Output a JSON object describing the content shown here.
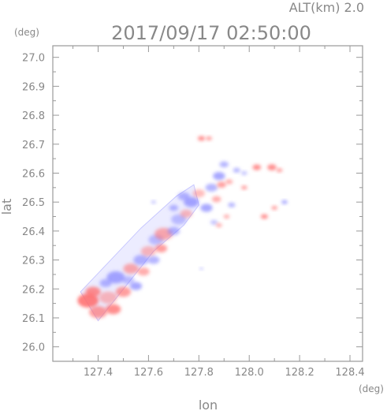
{
  "chart_data": {
    "type": "heatmap",
    "title": "2017/09/17 02:50:00",
    "annotation": "ALT(km) 2.0",
    "xlabel": "lon",
    "ylabel": "lat",
    "x_unit": "(deg)",
    "y_unit": "(deg)",
    "xlim": [
      127.22,
      128.45
    ],
    "ylim": [
      25.95,
      27.04
    ],
    "x_ticks": [
      127.4,
      127.6,
      127.8,
      128.0,
      128.2,
      128.4
    ],
    "x_tick_labels": [
      "127.4",
      "127.6",
      "127.8",
      "128.0",
      "128.2",
      "128.4"
    ],
    "y_ticks": [
      26.0,
      26.1,
      26.2,
      26.3,
      26.4,
      26.5,
      26.6,
      26.7,
      26.8,
      26.9,
      27.0
    ],
    "y_tick_labels": [
      "26.0",
      "26.1",
      "26.2",
      "26.3",
      "26.4",
      "26.5",
      "26.6",
      "26.7",
      "26.8",
      "26.9",
      "27.0"
    ],
    "grid": false,
    "colors": {
      "negative": "#7a7aff",
      "positive": "#ff6a6a",
      "axis": "#999999",
      "text": "#888888"
    },
    "swath": {
      "polygon": [
        [
          127.33,
          26.19
        ],
        [
          127.4,
          26.09
        ],
        [
          127.62,
          26.33
        ],
        [
          127.74,
          26.42
        ],
        [
          127.8,
          26.49
        ],
        [
          127.78,
          26.56
        ],
        [
          127.71,
          26.52
        ],
        [
          127.57,
          26.41
        ],
        [
          127.45,
          26.3
        ],
        [
          127.33,
          26.19
        ]
      ]
    },
    "cells": [
      {
        "x": 127.36,
        "y": 26.16,
        "r": 0.035,
        "v": 0.7
      },
      {
        "x": 127.4,
        "y": 26.12,
        "r": 0.03,
        "v": 0.5
      },
      {
        "x": 127.38,
        "y": 26.19,
        "r": 0.025,
        "v": 0.6
      },
      {
        "x": 127.44,
        "y": 26.17,
        "r": 0.03,
        "v": 0.3
      },
      {
        "x": 127.46,
        "y": 26.13,
        "r": 0.025,
        "v": 0.6
      },
      {
        "x": 127.43,
        "y": 26.22,
        "r": 0.02,
        "v": -0.4
      },
      {
        "x": 127.47,
        "y": 26.24,
        "r": 0.03,
        "v": -0.5
      },
      {
        "x": 127.5,
        "y": 26.19,
        "r": 0.025,
        "v": 0.5
      },
      {
        "x": 127.52,
        "y": 26.23,
        "r": 0.02,
        "v": -0.3
      },
      {
        "x": 127.53,
        "y": 26.27,
        "r": 0.025,
        "v": 0.4
      },
      {
        "x": 127.55,
        "y": 26.21,
        "r": 0.02,
        "v": -0.5
      },
      {
        "x": 127.57,
        "y": 26.3,
        "r": 0.025,
        "v": -0.4
      },
      {
        "x": 127.58,
        "y": 26.26,
        "r": 0.02,
        "v": 0.4
      },
      {
        "x": 127.6,
        "y": 26.33,
        "r": 0.025,
        "v": 0.3
      },
      {
        "x": 127.62,
        "y": 26.3,
        "r": 0.02,
        "v": -0.4
      },
      {
        "x": 127.63,
        "y": 26.37,
        "r": 0.025,
        "v": -0.3
      },
      {
        "x": 127.65,
        "y": 26.34,
        "r": 0.02,
        "v": 0.5
      },
      {
        "x": 127.66,
        "y": 26.39,
        "r": 0.03,
        "v": 0.4
      },
      {
        "x": 127.7,
        "y": 26.4,
        "r": 0.02,
        "v": -0.4
      },
      {
        "x": 127.72,
        "y": 26.44,
        "r": 0.025,
        "v": -0.3
      },
      {
        "x": 127.75,
        "y": 26.46,
        "r": 0.02,
        "v": 0.3
      },
      {
        "x": 127.77,
        "y": 26.5,
        "r": 0.025,
        "v": -0.5
      },
      {
        "x": 127.74,
        "y": 26.52,
        "r": 0.02,
        "v": -0.4
      },
      {
        "x": 127.8,
        "y": 26.53,
        "r": 0.02,
        "v": 0.3
      },
      {
        "x": 127.83,
        "y": 26.48,
        "r": 0.02,
        "v": -0.5
      },
      {
        "x": 127.85,
        "y": 26.55,
        "r": 0.02,
        "v": -0.4
      },
      {
        "x": 127.87,
        "y": 26.51,
        "r": 0.015,
        "v": 0.4
      },
      {
        "x": 127.88,
        "y": 26.59,
        "r": 0.02,
        "v": -0.5
      },
      {
        "x": 127.9,
        "y": 26.63,
        "r": 0.015,
        "v": -0.4
      },
      {
        "x": 127.89,
        "y": 26.56,
        "r": 0.015,
        "v": 0.5
      },
      {
        "x": 127.92,
        "y": 26.57,
        "r": 0.012,
        "v": 0.4
      },
      {
        "x": 127.93,
        "y": 26.49,
        "r": 0.012,
        "v": -0.4
      },
      {
        "x": 127.91,
        "y": 26.45,
        "r": 0.01,
        "v": 0.4
      },
      {
        "x": 127.86,
        "y": 26.43,
        "r": 0.012,
        "v": -0.3
      },
      {
        "x": 127.95,
        "y": 26.61,
        "r": 0.012,
        "v": -0.4
      },
      {
        "x": 127.98,
        "y": 26.6,
        "r": 0.01,
        "v": -0.3
      },
      {
        "x": 128.03,
        "y": 26.62,
        "r": 0.014,
        "v": 0.6
      },
      {
        "x": 128.09,
        "y": 26.62,
        "r": 0.015,
        "v": 0.6
      },
      {
        "x": 128.12,
        "y": 26.61,
        "r": 0.01,
        "v": 0.5
      },
      {
        "x": 127.98,
        "y": 26.55,
        "r": 0.01,
        "v": 0.5
      },
      {
        "x": 127.81,
        "y": 26.72,
        "r": 0.012,
        "v": 0.6
      },
      {
        "x": 127.84,
        "y": 26.72,
        "r": 0.01,
        "v": 0.5
      },
      {
        "x": 128.14,
        "y": 26.5,
        "r": 0.01,
        "v": -0.5
      },
      {
        "x": 128.1,
        "y": 26.48,
        "r": 0.01,
        "v": 0.5
      },
      {
        "x": 128.06,
        "y": 26.45,
        "r": 0.012,
        "v": 0.6
      },
      {
        "x": 127.88,
        "y": 26.42,
        "r": 0.01,
        "v": 0.4
      },
      {
        "x": 127.62,
        "y": 26.5,
        "r": 0.008,
        "v": -0.3
      },
      {
        "x": 127.81,
        "y": 26.27,
        "r": 0.006,
        "v": -0.3
      },
      {
        "x": 127.7,
        "y": 26.48,
        "r": 0.015,
        "v": -0.4
      }
    ]
  }
}
